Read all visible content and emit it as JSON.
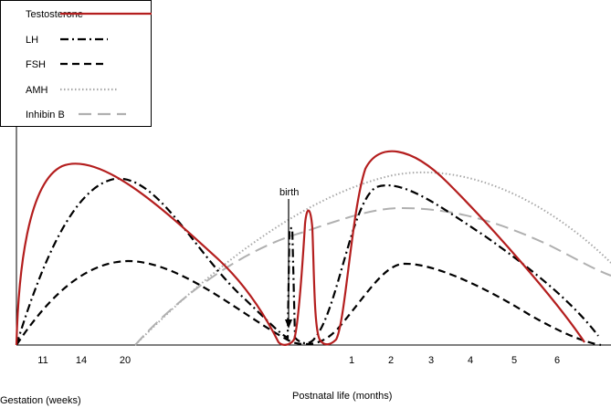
{
  "chart_data": {
    "type": "line",
    "title": "",
    "axes": {
      "gestation_label": "Gestation (weeks)",
      "postnatal_label": "Postnatal life (months)",
      "gestation_ticks": [
        "11",
        "14",
        "20"
      ],
      "postnatal_ticks": [
        "1",
        "2",
        "3",
        "4",
        "5",
        "6"
      ]
    },
    "annotation": {
      "text": "birth"
    },
    "legend": {
      "placement": "top-left"
    },
    "series": [
      {
        "name": "Testosterone",
        "key": "testosterone",
        "color": "#b41e1e",
        "style": "solid"
      },
      {
        "name": "LH",
        "key": "lh",
        "color": "#000000",
        "style": "dash-dot"
      },
      {
        "name": "FSH",
        "key": "fsh",
        "color": "#000000",
        "style": "dashed"
      },
      {
        "name": "AMH",
        "key": "amh",
        "color": "#a8a8a8",
        "style": "dotted"
      },
      {
        "name": "Inhibin B",
        "key": "inhibinb",
        "color": "#b0b0b0",
        "style": "long-dash"
      }
    ]
  }
}
